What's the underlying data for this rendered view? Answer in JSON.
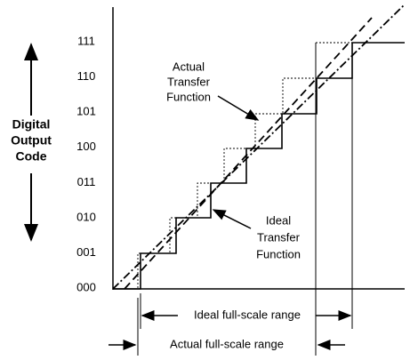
{
  "axis_label": [
    "Digital",
    "Output",
    "Code"
  ],
  "codes": [
    "111",
    "110",
    "101",
    "100",
    "011",
    "010",
    "001",
    "000"
  ],
  "annotations": {
    "actual": [
      "Actual",
      "Transfer",
      "Function"
    ],
    "ideal": [
      "Ideal",
      "Transfer",
      "Function"
    ]
  },
  "ranges": {
    "ideal": "Ideal full-scale range",
    "actual": "Actual full-scale range"
  }
}
